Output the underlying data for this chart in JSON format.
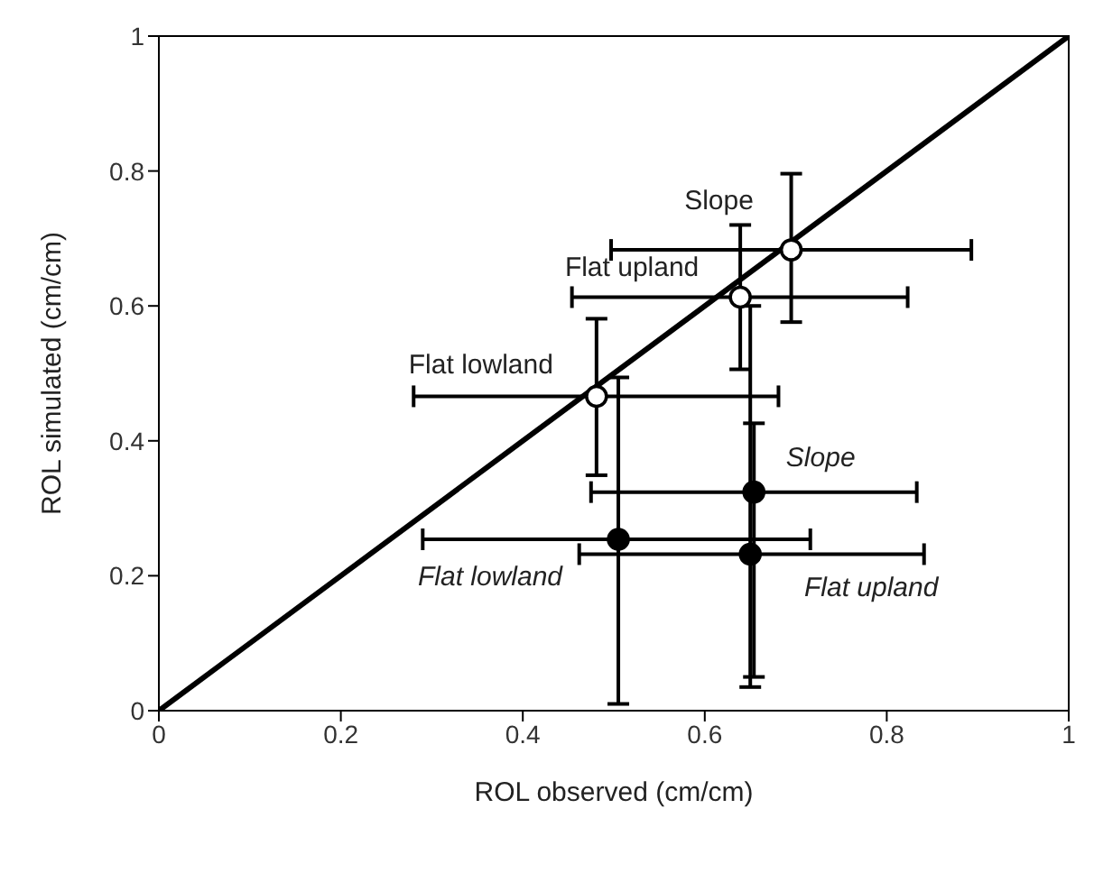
{
  "chart_data": {
    "type": "scatter",
    "xlabel": "ROL observed (cm/cm)",
    "ylabel": "ROL simulated (cm/cm)",
    "xlim": [
      0,
      1
    ],
    "ylim": [
      0,
      1
    ],
    "xticks": [
      0,
      0.2,
      0.4,
      0.6,
      0.8,
      1
    ],
    "yticks": [
      0,
      0.2,
      0.4,
      0.6,
      0.8,
      1
    ],
    "grid": false,
    "legend": false,
    "marker": "circle",
    "series": [
      {
        "type": "line",
        "x": [
          0,
          1
        ],
        "values": [
          0,
          1
        ],
        "color": "#000000",
        "marker": "none"
      },
      {
        "color": "#ffffff",
        "x": [
          0.695,
          0.639,
          0.481
        ],
        "values": [
          0.683,
          0.613,
          0.466
        ],
        "errors": [
          [
            0.576,
            0.796
          ],
          [
            0.506,
            0.72
          ],
          [
            0.349,
            0.581
          ]
        ],
        "xerrors": [
          [
            0.497,
            0.893
          ],
          [
            0.454,
            0.823
          ],
          [
            0.28,
            0.681
          ]
        ]
      },
      {
        "color": "#000000",
        "x": [
          0.654,
          0.65,
          0.505
        ],
        "values": [
          0.324,
          0.232,
          0.254
        ],
        "errors": [
          [
            0.05,
            0.426
          ],
          [
            0.035,
            0.6
          ],
          [
            0.01,
            0.494
          ]
        ],
        "xerrors": [
          [
            0.475,
            0.833
          ],
          [
            0.462,
            0.841
          ],
          [
            0.29,
            0.716
          ]
        ]
      }
    ],
    "annotations": [
      {
        "text": "Slope",
        "x": 0.695,
        "y": 0.683
      },
      {
        "text": "Flat upland",
        "x": 0.639,
        "y": 0.613
      },
      {
        "text": "Flat lowland",
        "x": 0.481,
        "y": 0.466
      },
      {
        "text": "Slope",
        "x": 0.654,
        "y": 0.324
      },
      {
        "text": "Flat lowland",
        "x": 0.505,
        "y": 0.254
      },
      {
        "text": "Flat upland",
        "x": 0.65,
        "y": 0.232
      }
    ]
  }
}
